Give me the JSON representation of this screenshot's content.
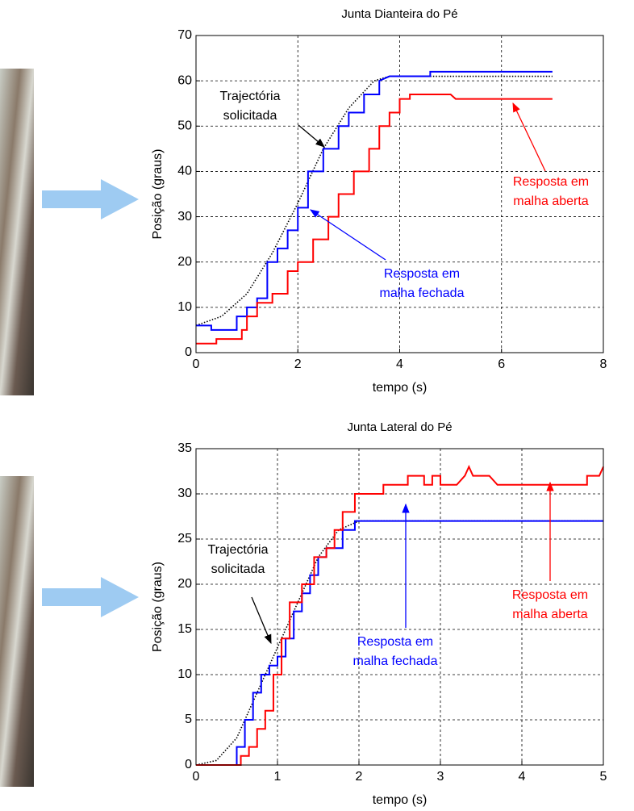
{
  "chart_data": [
    {
      "type": "line",
      "title": "Junta Dianteira do Pé",
      "xlabel": "tempo (s)",
      "ylabel": "Posição (graus)",
      "xlim": [
        0,
        8
      ],
      "ylim": [
        0,
        70
      ],
      "xticks": [
        0,
        2,
        4,
        6,
        8
      ],
      "yticks": [
        0,
        10,
        20,
        30,
        40,
        50,
        60,
        70
      ],
      "grid": true,
      "series": [
        {
          "color": "#000000",
          "style": "dotted",
          "x": [
            0,
            0.5,
            1,
            1.5,
            2,
            2.5,
            3,
            3.5,
            3.8,
            4,
            5,
            6,
            7
          ],
          "values": [
            6,
            8,
            13,
            22,
            33,
            45,
            54,
            60,
            61,
            61,
            61,
            61,
            61
          ]
        },
        {
          "color": "#0000ff",
          "style": "solid",
          "x": [
            0,
            0.3,
            0.3,
            0.8,
            0.8,
            1,
            1,
            1.2,
            1.2,
            1.4,
            1.4,
            1.6,
            1.6,
            1.8,
            1.8,
            2,
            2,
            2.2,
            2.2,
            2.5,
            2.5,
            2.8,
            2.8,
            3,
            3,
            3.3,
            3.3,
            3.6,
            3.6,
            3.8,
            4.6,
            4.6,
            7
          ],
          "values": [
            6,
            6,
            5,
            5,
            8,
            8,
            10,
            10,
            12,
            12,
            20,
            20,
            23,
            23,
            27,
            27,
            32,
            32,
            40,
            40,
            45,
            45,
            50,
            50,
            53,
            53,
            57,
            57,
            60,
            61,
            61,
            62,
            62
          ]
        },
        {
          "color": "#ff0000",
          "style": "solid",
          "x": [
            0,
            0.4,
            0.4,
            0.9,
            0.9,
            1,
            1,
            1.2,
            1.2,
            1.5,
            1.5,
            1.8,
            1.8,
            2,
            2,
            2.3,
            2.3,
            2.6,
            2.6,
            2.8,
            2.8,
            3.1,
            3.1,
            3.4,
            3.4,
            3.6,
            3.6,
            3.8,
            3.8,
            4,
            4,
            4.2,
            4.2,
            5,
            5.1,
            7
          ],
          "values": [
            2,
            2,
            3,
            3,
            5,
            5,
            8,
            8,
            11,
            11,
            13,
            13,
            18,
            18,
            20,
            20,
            25,
            25,
            30,
            30,
            35,
            35,
            40,
            40,
            45,
            45,
            50,
            50,
            53,
            53,
            56,
            56,
            57,
            57,
            56,
            56
          ]
        }
      ],
      "annotations": [
        {
          "lines": [
            "Trajectória",
            "solicitada"
          ],
          "color": "#000000"
        },
        {
          "lines": [
            "Resposta em",
            "malha aberta"
          ],
          "color": "#ff0000"
        },
        {
          "lines": [
            "Resposta em",
            "malha fechada"
          ],
          "color": "#0000ff"
        }
      ]
    },
    {
      "type": "line",
      "title": "Junta Lateral do Pé",
      "xlabel": "tempo (s)",
      "ylabel": "Posição (graus)",
      "xlim": [
        0,
        5
      ],
      "ylim": [
        0,
        35
      ],
      "xticks": [
        0,
        1,
        2,
        3,
        4,
        5
      ],
      "yticks": [
        0,
        5,
        10,
        15,
        20,
        25,
        30,
        35
      ],
      "grid": true,
      "series": [
        {
          "color": "#000000",
          "style": "dotted",
          "x": [
            0,
            0.25,
            0.5,
            0.75,
            1,
            1.25,
            1.5,
            1.75,
            2,
            3,
            4,
            5
          ],
          "values": [
            0,
            0.5,
            3,
            8,
            13,
            18,
            23,
            26,
            27,
            27,
            27,
            27
          ]
        },
        {
          "color": "#0000ff",
          "style": "solid",
          "x": [
            0,
            0.5,
            0.5,
            0.6,
            0.6,
            0.7,
            0.7,
            0.8,
            0.8,
            0.9,
            0.9,
            1,
            1,
            1.1,
            1.1,
            1.2,
            1.2,
            1.3,
            1.3,
            1.4,
            1.4,
            1.5,
            1.5,
            1.6,
            1.6,
            1.8,
            1.8,
            1.95,
            1.95,
            5
          ],
          "values": [
            0,
            0,
            2,
            2,
            5,
            5,
            8,
            8,
            10,
            10,
            11,
            11,
            12,
            12,
            14,
            14,
            17,
            17,
            19,
            19,
            21,
            21,
            23,
            23,
            24,
            24,
            26,
            26,
            27,
            27
          ]
        },
        {
          "color": "#ff0000",
          "style": "solid",
          "x": [
            0,
            0.55,
            0.55,
            0.65,
            0.65,
            0.75,
            0.75,
            0.85,
            0.85,
            0.95,
            0.95,
            1.05,
            1.05,
            1.15,
            1.15,
            1.3,
            1.3,
            1.45,
            1.45,
            1.6,
            1.6,
            1.7,
            1.7,
            1.8,
            1.8,
            1.95,
            1.95,
            2.3,
            2.3,
            2.6,
            2.6,
            2.8,
            2.8,
            2.9,
            2.9,
            3,
            3,
            3.2,
            3.3,
            3.35,
            3.4,
            3.6,
            3.7,
            4.8,
            4.8,
            4.95,
            5
          ],
          "values": [
            0,
            0,
            1,
            1,
            2,
            2,
            4,
            4,
            6,
            6,
            10,
            10,
            14,
            14,
            18,
            18,
            20,
            20,
            23,
            23,
            24,
            24,
            26,
            26,
            28,
            28,
            30,
            30,
            31,
            31,
            32,
            32,
            31,
            31,
            32,
            32,
            31,
            31,
            32,
            33,
            32,
            32,
            31,
            31,
            32,
            32,
            33
          ]
        }
      ],
      "annotations": [
        {
          "lines": [
            "Trajectória",
            "solicitada"
          ],
          "color": "#000000"
        },
        {
          "lines": [
            "Resposta em",
            "malha fechada"
          ],
          "color": "#0000ff"
        },
        {
          "lines": [
            "Resposta em",
            "malha aberta"
          ],
          "color": "#ff0000"
        }
      ]
    }
  ]
}
